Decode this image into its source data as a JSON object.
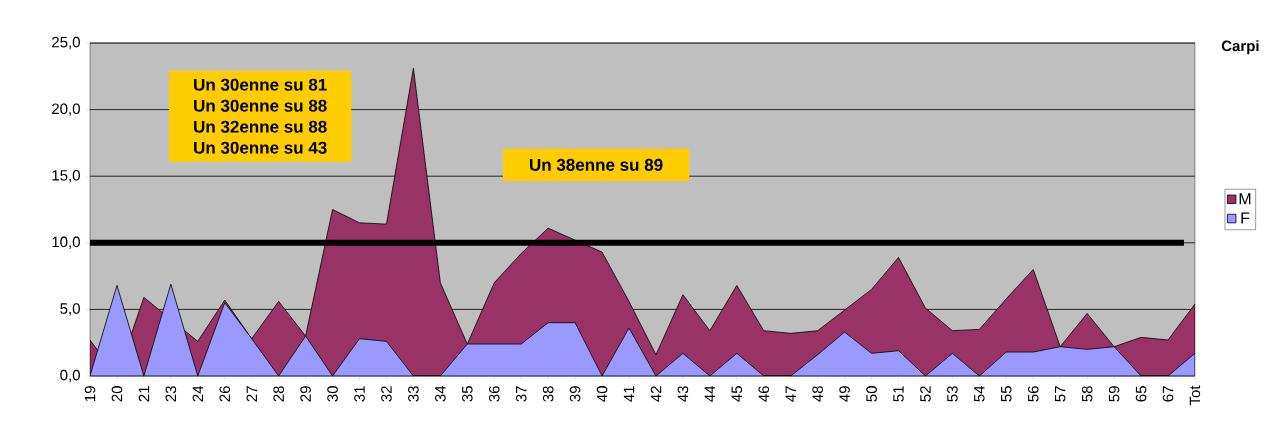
{
  "chart_data": {
    "type": "area",
    "title": "Carpi",
    "categories": [
      "19",
      "20",
      "21",
      "23",
      "24",
      "26",
      "27",
      "28",
      "29",
      "30",
      "31",
      "32",
      "33",
      "34",
      "35",
      "36",
      "37",
      "38",
      "39",
      "40",
      "41",
      "42",
      "43",
      "44",
      "45",
      "46",
      "47",
      "48",
      "49",
      "50",
      "51",
      "52",
      "53",
      "54",
      "55",
      "56",
      "57",
      "58",
      "59",
      "65",
      "67",
      "Tot"
    ],
    "series": [
      {
        "name": "M",
        "color": "#993366",
        "values": [
          2.7,
          0,
          5.9,
          null,
          2.6,
          5.7,
          2.8,
          5.6,
          3.0,
          12.5,
          11.5,
          11.4,
          23.1,
          7.0,
          2.4,
          7.0,
          9.2,
          11.1,
          null,
          9.3,
          5.6,
          1.6,
          6.1,
          3.4,
          6.8,
          3.4,
          3.2,
          3.4,
          null,
          6.5,
          8.9,
          5.1,
          3.4,
          3.5,
          5.8,
          8.0,
          2.2,
          4.7,
          2.2,
          2.9,
          2.7,
          5.4
        ]
      },
      {
        "name": "F",
        "color": "#9999ff",
        "values": [
          0,
          6.8,
          0,
          6.9,
          0,
          5.5,
          2.8,
          0,
          3.0,
          0,
          2.8,
          2.6,
          0,
          0,
          2.4,
          2.4,
          2.4,
          4.0,
          4.0,
          0,
          3.6,
          0,
          1.7,
          0,
          1.7,
          0,
          0,
          1.6,
          3.3,
          1.7,
          1.9,
          0,
          1.7,
          0,
          1.8,
          1.8,
          2.2,
          2.0,
          2.2,
          0,
          0,
          1.7
        ]
      }
    ],
    "ylim": [
      0,
      25
    ],
    "yticks": [
      {
        "value": 0,
        "label": "0,0"
      },
      {
        "value": 5,
        "label": "5,0"
      },
      {
        "value": 10,
        "label": "10,0"
      },
      {
        "value": 15,
        "label": "15,0"
      },
      {
        "value": 20,
        "label": "20,0"
      },
      {
        "value": 25,
        "label": "25,0"
      }
    ],
    "grid": "y",
    "legend": "right",
    "ref_lines": [
      {
        "axis": "y",
        "value": 10,
        "color": "#000000"
      }
    ],
    "annotations": [
      "Un 30enne su 81",
      "Un 30enne su 88",
      "Un 32enne su 88",
      "Un 30enne su 43",
      "Un 38enne su 89"
    ]
  }
}
